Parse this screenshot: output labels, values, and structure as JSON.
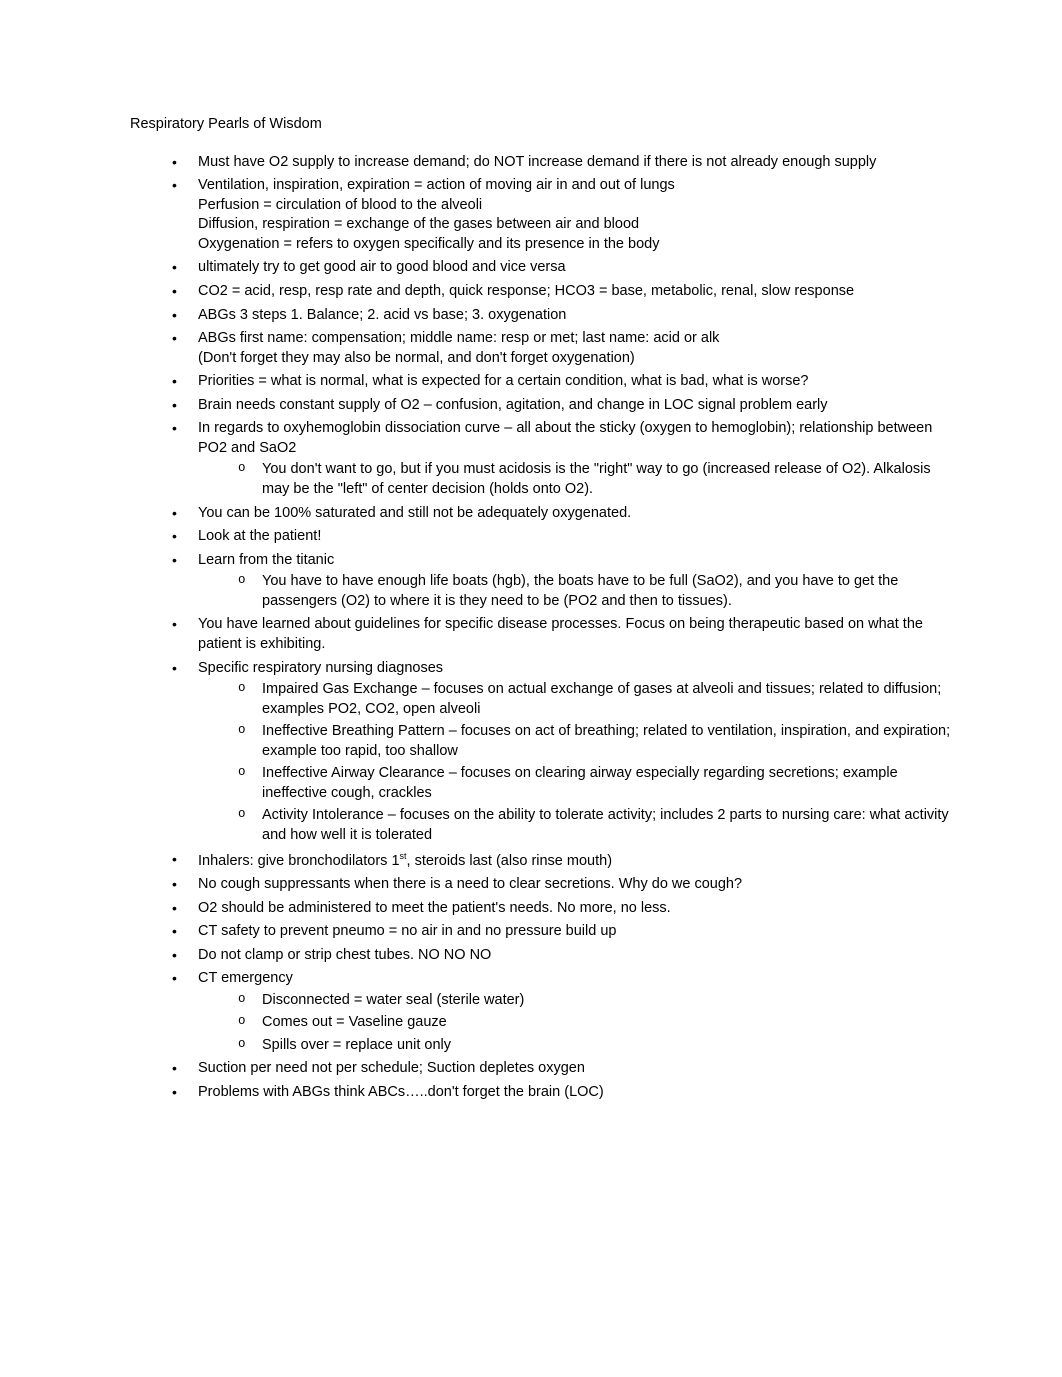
{
  "document": {
    "title": "Respiratory Pearls of Wisdom",
    "title_fontsize": 14.5,
    "body_fontsize": 14.5,
    "text_color": "#000000",
    "background_color": "#ffffff",
    "bullets": [
      {
        "lines": [
          "Must have O2 supply to increase demand; do NOT increase demand if there is not already enough supply"
        ]
      },
      {
        "lines": [
          "Ventilation, inspiration, expiration = action of moving air in and out of lungs",
          "Perfusion = circulation of blood to the alveoli",
          "Diffusion, respiration = exchange of the gases between air and blood",
          "Oxygenation = refers to oxygen specifically and its presence in the body"
        ]
      },
      {
        "lines": [
          "ultimately try to get good air to good blood and vice versa"
        ]
      },
      {
        "lines": [
          "CO2 = acid, resp, resp rate and depth, quick response; HCO3 = base, metabolic, renal, slow response"
        ]
      },
      {
        "lines": [
          "ABGs 3 steps 1. Balance; 2. acid vs base; 3. oxygenation"
        ]
      },
      {
        "lines": [
          "ABGs  first name: compensation; middle name: resp or met; last name: acid or alk",
          "(Don't forget they may also be normal, and don't forget oxygenation)"
        ]
      },
      {
        "lines": [
          "Priorities = what is normal, what is expected for a certain condition, what is bad, what is worse?"
        ]
      },
      {
        "lines": [
          "Brain needs constant supply of O2 – confusion, agitation, and change in LOC signal problem early"
        ]
      },
      {
        "lines": [
          "In regards to oxyhemoglobin dissociation curve – all about the sticky (oxygen to hemoglobin); relationship between PO2 and SaO2"
        ],
        "sub": [
          "You don't want to go, but if you must acidosis is the \"right\" way to go (increased release of O2). Alkalosis may be the \"left\" of center decision (holds onto O2)."
        ]
      },
      {
        "lines": [
          "You can be 100% saturated and still not be adequately oxygenated."
        ]
      },
      {
        "lines": [
          "Look at the patient!"
        ]
      },
      {
        "lines": [
          "Learn from the titanic"
        ],
        "sub": [
          "You have to have enough life boats (hgb), the boats have to be full (SaO2), and you have to get the passengers (O2) to where it is they need to be (PO2 and then to tissues)."
        ]
      },
      {
        "lines": [
          "You have learned about guidelines for specific disease processes. Focus on being therapeutic based on what the patient is exhibiting."
        ]
      },
      {
        "lines": [
          "Specific respiratory nursing diagnoses"
        ],
        "sub": [
          "Impaired Gas Exchange – focuses on actual exchange of gases at alveoli and tissues; related to diffusion; examples PO2, CO2, open alveoli",
          "Ineffective Breathing Pattern – focuses on act of breathing; related to ventilation, inspiration, and expiration; example too rapid, too shallow",
          "Ineffective Airway Clearance – focuses on clearing airway especially regarding secretions; example ineffective cough, crackles",
          "Activity Intolerance – focuses on the ability to tolerate activity; includes 2 parts to nursing care: what activity and how well it is tolerated"
        ]
      },
      {
        "lines_html": [
          "Inhalers: give bronchodilators 1<sup>st</sup>, steroids last (also rinse mouth)"
        ]
      },
      {
        "lines": [
          "No cough suppressants when there is a need to clear secretions. Why do we cough?"
        ]
      },
      {
        "lines": [
          "O2 should be administered to meet the patient's needs. No more, no less."
        ]
      },
      {
        "lines": [
          "CT safety to prevent pneumo = no air in and no pressure build up"
        ]
      },
      {
        "lines": [
          "Do not clamp or strip chest tubes. NO NO NO"
        ]
      },
      {
        "lines": [
          "CT emergency"
        ],
        "sub": [
          "Disconnected = water seal (sterile water)",
          "Comes out = Vaseline gauze",
          "Spills over = replace unit only"
        ]
      },
      {
        "lines": [
          "Suction per need not per schedule; Suction depletes oxygen"
        ]
      },
      {
        "lines": [
          "Problems with ABGs think ABCs…..don't forget the brain (LOC)"
        ]
      }
    ]
  }
}
